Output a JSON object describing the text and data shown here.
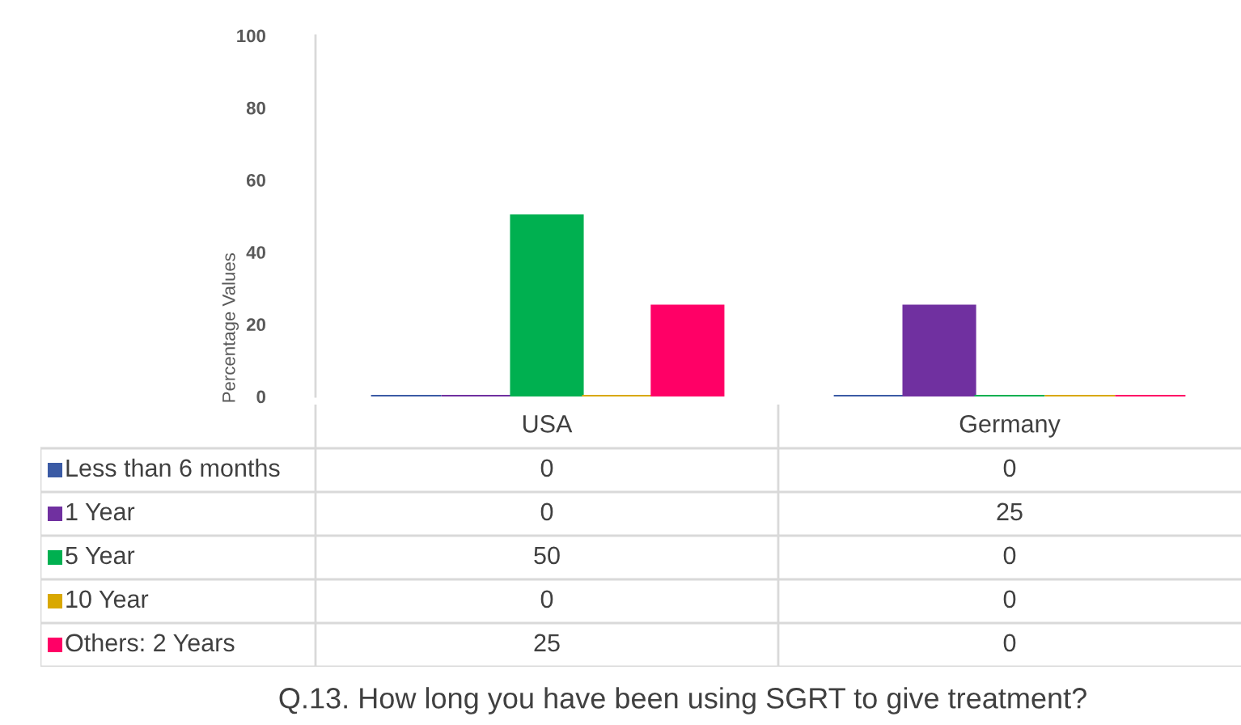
{
  "chart_data": {
    "type": "bar",
    "title": "Q.13. How long you have been using SGRT to give treatment?",
    "ylabel": "Percentage Values",
    "categories": [
      "USA",
      "Germany"
    ],
    "series": [
      {
        "name": "Less than 6 months",
        "color": "#3b5ba5",
        "values": [
          0,
          0
        ]
      },
      {
        "name": "1 Year",
        "color": "#7030a0",
        "values": [
          0,
          25
        ]
      },
      {
        "name": "5 Year",
        "color": "#00b050",
        "values": [
          50,
          0
        ]
      },
      {
        "name": "10 Year",
        "color": "#d9a800",
        "values": [
          0,
          0
        ]
      },
      {
        "name": "Others: 2 Years",
        "color": "#ff0066",
        "values": [
          25,
          0
        ]
      }
    ],
    "ylim": [
      0,
      100
    ],
    "yticks": [
      0,
      20,
      40,
      60,
      80,
      100
    ],
    "data_labels": true,
    "legend": "bottom"
  }
}
